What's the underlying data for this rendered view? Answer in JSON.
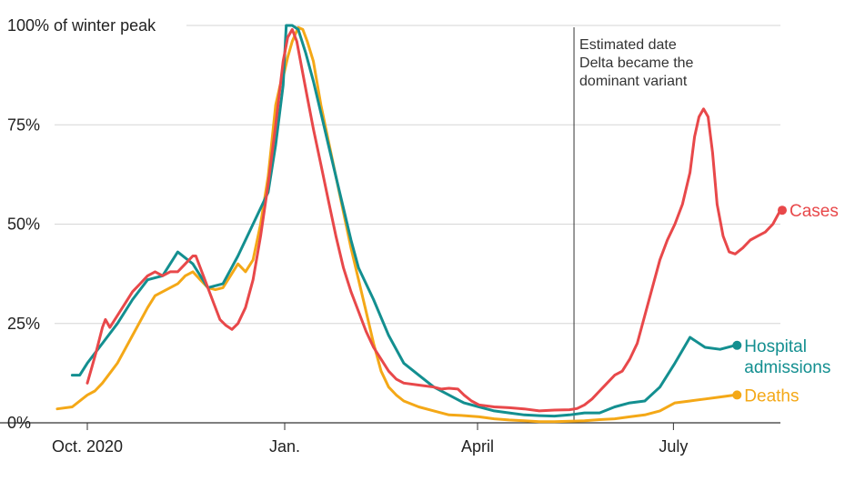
{
  "chart_data": {
    "type": "line",
    "title": "",
    "xlabel": "",
    "ylabel": "",
    "x_unit": "weeks since Oct. 1, 2020",
    "xlim": [
      -1.5,
      45
    ],
    "ylim": [
      0,
      100
    ],
    "y_ticks": [
      {
        "value": 0,
        "label": "0%"
      },
      {
        "value": 25,
        "label": "25%"
      },
      {
        "value": 50,
        "label": "50%"
      },
      {
        "value": 75,
        "label": "75%"
      },
      {
        "value": 100,
        "label": "100% of winter peak"
      }
    ],
    "x_ticks": [
      {
        "value": 0,
        "label": "Oct. 2020"
      },
      {
        "value": 13.1,
        "label": "Jan."
      },
      {
        "value": 25.9,
        "label": "April"
      },
      {
        "value": 38.9,
        "label": "July"
      }
    ],
    "grid": true,
    "annotation": {
      "x": 32.3,
      "lines": [
        "Estimated date",
        "Delta became the",
        "dominant variant"
      ]
    },
    "series": [
      {
        "name": "Cases",
        "color": "#e8484a",
        "points": [
          [
            0,
            10
          ],
          [
            0.3,
            14
          ],
          [
            0.6,
            18
          ],
          [
            1,
            24
          ],
          [
            1.2,
            26
          ],
          [
            1.5,
            24
          ],
          [
            2,
            27
          ],
          [
            2.5,
            30
          ],
          [
            3,
            33
          ],
          [
            3.5,
            35
          ],
          [
            4,
            37
          ],
          [
            4.5,
            38
          ],
          [
            5,
            37
          ],
          [
            5.5,
            38
          ],
          [
            6,
            38
          ],
          [
            6.5,
            40
          ],
          [
            7,
            42
          ],
          [
            7.2,
            42
          ],
          [
            7.6,
            38
          ],
          [
            8,
            34
          ],
          [
            8.4,
            30
          ],
          [
            8.8,
            26
          ],
          [
            9.2,
            24.5
          ],
          [
            9.6,
            23.5
          ],
          [
            10,
            25
          ],
          [
            10.5,
            29
          ],
          [
            11,
            36
          ],
          [
            11.5,
            47
          ],
          [
            12,
            60
          ],
          [
            12.5,
            75
          ],
          [
            13,
            91
          ],
          [
            13.3,
            97
          ],
          [
            13.6,
            99
          ],
          [
            13.9,
            96
          ],
          [
            14.2,
            90
          ],
          [
            14.6,
            82
          ],
          [
            15,
            74
          ],
          [
            15.5,
            65
          ],
          [
            16,
            56
          ],
          [
            16.5,
            47
          ],
          [
            17,
            39
          ],
          [
            17.5,
            33
          ],
          [
            18,
            28
          ],
          [
            18.5,
            23
          ],
          [
            19,
            19
          ],
          [
            19.5,
            16
          ],
          [
            20,
            13
          ],
          [
            20.5,
            11
          ],
          [
            21,
            10
          ],
          [
            22,
            9.5
          ],
          [
            23,
            9
          ],
          [
            23.5,
            8.5
          ],
          [
            24,
            8.7
          ],
          [
            24.6,
            8.5
          ],
          [
            25,
            7
          ],
          [
            25.5,
            5.5
          ],
          [
            26,
            4.5
          ],
          [
            27,
            4
          ],
          [
            28,
            3.8
          ],
          [
            29,
            3.5
          ],
          [
            30,
            3
          ],
          [
            31,
            3.2
          ],
          [
            32,
            3.3
          ],
          [
            32.5,
            3.6
          ],
          [
            33,
            4.5
          ],
          [
            33.5,
            6
          ],
          [
            34,
            8
          ],
          [
            34.5,
            10
          ],
          [
            35,
            12
          ],
          [
            35.5,
            13
          ],
          [
            36,
            16
          ],
          [
            36.5,
            20
          ],
          [
            37,
            27
          ],
          [
            37.5,
            34
          ],
          [
            38,
            41
          ],
          [
            38.5,
            46
          ],
          [
            39,
            50
          ],
          [
            39.5,
            55
          ],
          [
            40,
            63
          ],
          [
            40.3,
            72
          ],
          [
            40.6,
            77
          ],
          [
            40.9,
            79
          ],
          [
            41.2,
            77
          ],
          [
            41.5,
            68
          ],
          [
            41.8,
            55
          ],
          [
            42.2,
            47
          ],
          [
            42.6,
            43
          ],
          [
            43,
            42.5
          ],
          [
            43.5,
            44
          ],
          [
            44,
            46
          ],
          [
            44.5,
            47
          ],
          [
            45,
            48
          ],
          [
            45.5,
            50
          ],
          [
            46,
            53.5
          ]
        ]
      },
      {
        "name": "Hospital admissions",
        "color": "#138f90",
        "points": [
          [
            -1,
            12
          ],
          [
            -0.5,
            12
          ],
          [
            0,
            15
          ],
          [
            1,
            20
          ],
          [
            2,
            25
          ],
          [
            3,
            31
          ],
          [
            4,
            36
          ],
          [
            5,
            37
          ],
          [
            6,
            43
          ],
          [
            7,
            40
          ],
          [
            8,
            34
          ],
          [
            9,
            35
          ],
          [
            10,
            42
          ],
          [
            11,
            50
          ],
          [
            12,
            58
          ],
          [
            12.5,
            70
          ],
          [
            13,
            85
          ],
          [
            13.2,
            100
          ],
          [
            13.6,
            100
          ],
          [
            14,
            99
          ],
          [
            14.5,
            93
          ],
          [
            15,
            86
          ],
          [
            15.5,
            78
          ],
          [
            16,
            70
          ],
          [
            16.5,
            62
          ],
          [
            17,
            54
          ],
          [
            17.5,
            46
          ],
          [
            18,
            39
          ],
          [
            19,
            31
          ],
          [
            20,
            22
          ],
          [
            21,
            15
          ],
          [
            22,
            12
          ],
          [
            23,
            9
          ],
          [
            24,
            7
          ],
          [
            25,
            5
          ],
          [
            26,
            4
          ],
          [
            27,
            3
          ],
          [
            28,
            2.5
          ],
          [
            29,
            2
          ],
          [
            30,
            1.8
          ],
          [
            31,
            1.7
          ],
          [
            32,
            2
          ],
          [
            33,
            2.5
          ],
          [
            34,
            2.5
          ],
          [
            35,
            4
          ],
          [
            36,
            5
          ],
          [
            37,
            5.5
          ],
          [
            38,
            9
          ],
          [
            39,
            15
          ],
          [
            40,
            21.5
          ],
          [
            41,
            19
          ],
          [
            42,
            18.5
          ],
          [
            43,
            19.5
          ]
        ]
      },
      {
        "name": "Deaths",
        "color": "#f4a817",
        "points": [
          [
            -2,
            3.5
          ],
          [
            -1,
            4
          ],
          [
            0,
            7
          ],
          [
            0.5,
            8
          ],
          [
            1,
            10
          ],
          [
            2,
            15
          ],
          [
            3,
            22
          ],
          [
            4,
            29
          ],
          [
            4.5,
            32
          ],
          [
            5,
            33
          ],
          [
            5.5,
            34
          ],
          [
            6,
            35
          ],
          [
            6.5,
            37
          ],
          [
            7,
            38
          ],
          [
            7.5,
            36
          ],
          [
            8,
            34
          ],
          [
            8.5,
            33.5
          ],
          [
            9,
            34
          ],
          [
            9.5,
            37
          ],
          [
            10,
            40
          ],
          [
            10.5,
            38
          ],
          [
            11,
            41
          ],
          [
            11.5,
            50
          ],
          [
            12,
            62
          ],
          [
            12.5,
            80
          ],
          [
            12.8,
            85
          ],
          [
            13,
            87
          ],
          [
            13.3,
            92
          ],
          [
            13.6,
            96
          ],
          [
            14,
            99.5
          ],
          [
            14.3,
            99
          ],
          [
            14.6,
            96
          ],
          [
            15,
            91
          ],
          [
            15.5,
            80
          ],
          [
            16,
            71
          ],
          [
            16.5,
            62
          ],
          [
            17,
            53
          ],
          [
            17.5,
            44
          ],
          [
            18,
            36
          ],
          [
            18.5,
            28
          ],
          [
            19,
            20
          ],
          [
            19.5,
            13
          ],
          [
            20,
            9
          ],
          [
            20.5,
            7
          ],
          [
            21,
            5.5
          ],
          [
            22,
            4
          ],
          [
            23,
            3
          ],
          [
            24,
            2
          ],
          [
            25,
            1.8
          ],
          [
            26,
            1.5
          ],
          [
            27,
            1
          ],
          [
            28,
            0.7
          ],
          [
            29,
            0.5
          ],
          [
            30,
            0.3
          ],
          [
            31,
            0.3
          ],
          [
            32,
            0.4
          ],
          [
            33,
            0.5
          ],
          [
            34,
            0.8
          ],
          [
            35,
            1
          ],
          [
            36,
            1.5
          ],
          [
            37,
            2
          ],
          [
            38,
            3
          ],
          [
            39,
            5
          ],
          [
            40,
            5.5
          ],
          [
            41,
            6
          ],
          [
            42,
            6.5
          ],
          [
            43,
            7
          ]
        ]
      }
    ]
  }
}
